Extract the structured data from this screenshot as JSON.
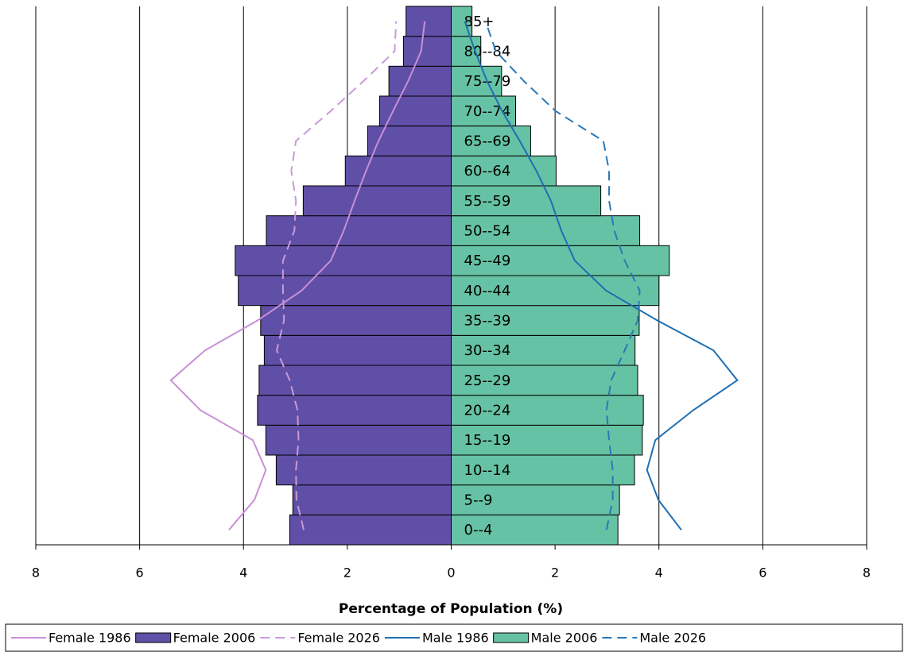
{
  "chart_data": {
    "type": "bar",
    "orientation": "horizontal",
    "xlabel": "Percentage of Population (%)",
    "categories": [
      "0--4",
      "5--9",
      "10--14",
      "15--19",
      "20--24",
      "25--29",
      "30--34",
      "35--39",
      "40--44",
      "45--49",
      "50--54",
      "55--59",
      "60--64",
      "65--69",
      "70--74",
      "75--79",
      "80--84",
      "85+"
    ],
    "xlim": [
      -8,
      8
    ],
    "xticks": [
      {
        "value": -8,
        "label": "8"
      },
      {
        "value": -6,
        "label": "6"
      },
      {
        "value": -4,
        "label": "4"
      },
      {
        "value": -2,
        "label": "2"
      },
      0,
      2,
      4,
      6,
      8
    ],
    "grid": true,
    "legend": "bottom",
    "series": [
      {
        "name": "Female 1986",
        "type": "line",
        "dashed": false,
        "color": "#c98fd8",
        "values": [
          -4.28,
          -3.79,
          -3.57,
          -3.82,
          -4.83,
          -5.4,
          -4.74,
          -3.73,
          -2.88,
          -2.32,
          -2.07,
          -1.86,
          -1.64,
          -1.4,
          -1.12,
          -0.83,
          -0.58,
          -0.51
        ]
      },
      {
        "name": "Female 2006",
        "type": "bar",
        "dashed": false,
        "color": "#604fa6",
        "values": [
          -3.11,
          -3.05,
          -3.37,
          -3.57,
          -3.73,
          -3.7,
          -3.6,
          -3.67,
          -4.1,
          -4.16,
          -3.56,
          -2.85,
          -2.04,
          -1.61,
          -1.38,
          -1.2,
          -0.92,
          -0.87
        ]
      },
      {
        "name": "Female 2026",
        "type": "line",
        "dashed": true,
        "color": "#c99ad8",
        "values": [
          -2.84,
          -2.98,
          -2.99,
          -2.94,
          -2.96,
          -3.11,
          -3.36,
          -3.22,
          -3.24,
          -3.24,
          -3.02,
          -2.99,
          -3.08,
          -2.99,
          -2.32,
          -1.69,
          -1.09,
          -1.06
        ]
      },
      {
        "name": "Male 1986",
        "type": "line",
        "dashed": false,
        "color": "#1f6fb2",
        "values": [
          4.43,
          3.99,
          3.77,
          3.93,
          4.66,
          5.51,
          5.05,
          3.97,
          2.98,
          2.38,
          2.12,
          1.92,
          1.64,
          1.32,
          0.98,
          0.69,
          0.46,
          0.26
        ]
      },
      {
        "name": "Male 2006",
        "type": "bar",
        "dashed": false,
        "color": "#66c2a4",
        "values": [
          3.21,
          3.24,
          3.53,
          3.68,
          3.7,
          3.59,
          3.54,
          3.62,
          4.0,
          4.2,
          3.63,
          2.88,
          2.02,
          1.53,
          1.24,
          0.97,
          0.57,
          0.4
        ]
      },
      {
        "name": "Male 2026",
        "type": "line",
        "dashed": true,
        "color": "#2a78b8",
        "values": [
          2.99,
          3.11,
          3.11,
          3.04,
          2.99,
          3.08,
          3.34,
          3.59,
          3.63,
          3.34,
          3.14,
          3.04,
          3.04,
          2.93,
          2.01,
          1.4,
          0.86,
          0.66
        ]
      }
    ]
  }
}
